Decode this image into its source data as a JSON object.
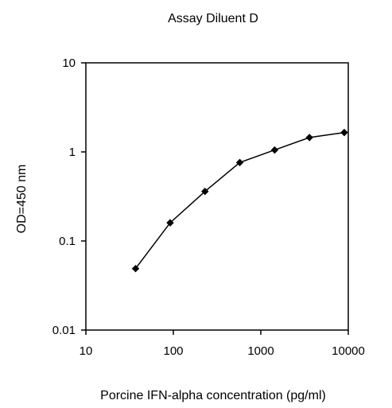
{
  "chart_data": {
    "type": "line",
    "title": "Assay Diluent D",
    "xlabel": "Porcine IFN-alpha concentration (pg/ml)",
    "ylabel": "OD=450 nm",
    "x_scale": "log",
    "y_scale": "log",
    "xlim": [
      10,
      10000
    ],
    "ylim": [
      0.01,
      10
    ],
    "x_ticks": [
      10,
      100,
      1000,
      10000
    ],
    "x_tick_labels": [
      "10",
      "100",
      "1000",
      "10000"
    ],
    "y_ticks": [
      0.01,
      0.1,
      1,
      10
    ],
    "y_tick_labels": [
      "0.01",
      "0.1",
      "1",
      "10"
    ],
    "grid": false,
    "legend": "none",
    "series": [
      {
        "x": [
          37,
          92,
          230,
          575,
          1440,
          3600,
          9000
        ],
        "y": [
          0.049,
          0.16,
          0.36,
          0.76,
          1.05,
          1.45,
          1.65
        ],
        "color": "#000000",
        "marker": "filled-diamond"
      }
    ]
  }
}
